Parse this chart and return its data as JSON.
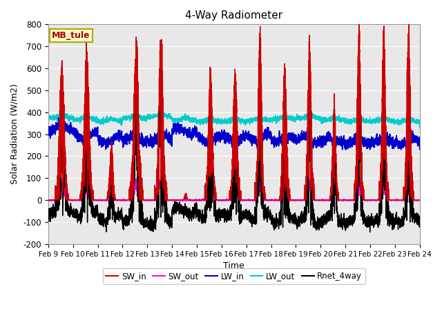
{
  "title": "4-Way Radiometer",
  "xlabel": "Time",
  "ylabel": "Solar Radiation (W/m2)",
  "ylim": [
    -200,
    800
  ],
  "xlim": [
    0,
    15
  ],
  "xtick_labels": [
    "Feb 9",
    "Feb 10",
    "Feb 11",
    "Feb 12",
    "Feb 13",
    "Feb 14",
    "Feb 15",
    "Feb 16",
    "Feb 17",
    "Feb 18",
    "Feb 19",
    "Feb 20",
    "Feb 21",
    "Feb 22",
    "Feb 23",
    "Feb 24"
  ],
  "ytick_values": [
    -200,
    -100,
    0,
    100,
    200,
    300,
    400,
    500,
    600,
    700,
    800
  ],
  "fig_facecolor": "#ffffff",
  "ax_facecolor": "#e8e8e8",
  "station_label": "MB_tule",
  "station_label_color": "#aa0000",
  "station_box_facecolor": "#ffffcc",
  "station_box_edgecolor": "#aaaa00",
  "grid_color": "#ffffff",
  "line_colors": {
    "SW_in": "#cc0000",
    "SW_out": "#ff00ff",
    "LW_in": "#0000cc",
    "LW_out": "#00cccc",
    "Rnet_4way": "#000000"
  }
}
